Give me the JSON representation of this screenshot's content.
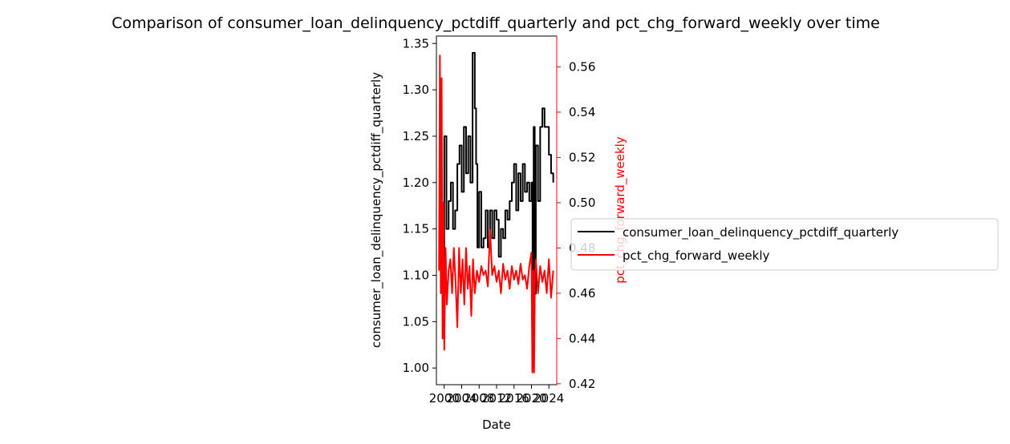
{
  "chart_data": {
    "type": "line",
    "title": "Comparison of consumer_loan_delinquency_pctdiff_quarterly and pct_chg_forward_weekly over time",
    "xlabel": "Date",
    "ylabel_left": "consumer_loan_delinquency_pctdiff_quarterly",
    "ylabel_right": "pct_chg_forward_weekly",
    "xlim": [
      1998.2,
      2025.8
    ],
    "ylim_left": [
      0.982,
      1.358
    ],
    "ylim_right": [
      0.4196,
      0.5736
    ],
    "x_ticks": [
      2000,
      2004,
      2008,
      2012,
      2016,
      2020,
      2024
    ],
    "x_tick_labels": [
      "2000",
      "2004",
      "2008",
      "2012",
      "2016",
      "2020",
      "2024"
    ],
    "y_ticks_left": [
      1.0,
      1.05,
      1.1,
      1.15,
      1.2,
      1.25,
      1.3,
      1.35
    ],
    "y_tick_labels_left": [
      "1.00",
      "1.05",
      "1.10",
      "1.15",
      "1.20",
      "1.25",
      "1.30",
      "1.35"
    ],
    "y_ticks_right": [
      0.42,
      0.44,
      0.46,
      0.48,
      0.5,
      0.52,
      0.54,
      0.56
    ],
    "y_tick_labels_right": [
      "0.42",
      "0.44",
      "0.46",
      "0.48",
      "0.50",
      "0.52",
      "0.54",
      "0.56"
    ],
    "grid": false,
    "legend_position": "right-outside",
    "series": [
      {
        "name": "consumer_loan_delinquency_pctdiff_quarterly",
        "axis": "left",
        "color": "#000000",
        "step": true,
        "x": [
          1999.0,
          1999.5,
          2000.0,
          2000.5,
          2001.0,
          2001.5,
          2002.0,
          2002.5,
          2003.0,
          2003.5,
          2004.0,
          2004.5,
          2005.0,
          2005.5,
          2006.0,
          2006.5,
          2007.0,
          2007.3,
          2007.6,
          2008.0,
          2008.5,
          2009.0,
          2009.5,
          2010.0,
          2010.5,
          2011.0,
          2011.5,
          2012.0,
          2012.5,
          2013.0,
          2013.5,
          2014.0,
          2014.5,
          2015.0,
          2015.5,
          2016.0,
          2016.5,
          2017.0,
          2017.5,
          2018.0,
          2018.5,
          2019.0,
          2019.5,
          2020.0,
          2020.25,
          2020.5,
          2020.75,
          2021.0,
          2021.5,
          2022.0,
          2022.5,
          2023.0,
          2023.5,
          2024.0,
          2024.5,
          2025.0
        ],
        "y": [
          1.16,
          1.11,
          1.25,
          1.15,
          1.18,
          1.2,
          1.15,
          1.17,
          1.22,
          1.24,
          1.19,
          1.26,
          1.21,
          1.25,
          1.2,
          1.34,
          1.28,
          1.22,
          1.13,
          1.19,
          1.13,
          1.14,
          1.17,
          1.13,
          1.17,
          1.14,
          1.17,
          1.16,
          1.12,
          1.15,
          1.14,
          1.17,
          1.16,
          1.18,
          1.2,
          1.22,
          1.17,
          1.21,
          1.18,
          1.22,
          1.19,
          1.2,
          1.18,
          1.2,
          1.0,
          1.26,
          1.08,
          1.24,
          1.18,
          1.26,
          1.28,
          1.26,
          1.26,
          1.23,
          1.21,
          1.2
        ]
      },
      {
        "name": "pct_chg_forward_weekly",
        "axis": "right",
        "color": "#ff0000",
        "step": false,
        "x": [
          1998.8,
          1999.0,
          1999.2,
          1999.4,
          1999.6,
          1999.8,
          2000.0,
          2000.3,
          2000.6,
          2001.0,
          2001.4,
          2001.8,
          2002.2,
          2002.6,
          2003.0,
          2003.4,
          2003.8,
          2004.2,
          2004.6,
          2005.0,
          2005.4,
          2005.8,
          2006.2,
          2006.6,
          2007.0,
          2007.5,
          2008.0,
          2008.5,
          2009.0,
          2009.5,
          2010.0,
          2010.5,
          2011.0,
          2011.5,
          2012.0,
          2012.5,
          2013.0,
          2013.5,
          2014.0,
          2014.5,
          2015.0,
          2015.5,
          2016.0,
          2016.5,
          2017.0,
          2017.5,
          2018.0,
          2018.5,
          2019.0,
          2019.5,
          2020.0,
          2020.2,
          2020.4,
          2020.6,
          2020.8,
          2021.0,
          2021.5,
          2022.0,
          2022.5,
          2023.0,
          2023.5,
          2024.0,
          2024.5,
          2025.0
        ],
        "y": [
          0.47,
          0.565,
          0.46,
          0.555,
          0.44,
          0.5,
          0.435,
          0.48,
          0.455,
          0.47,
          0.475,
          0.46,
          0.48,
          0.465,
          0.445,
          0.48,
          0.46,
          0.475,
          0.455,
          0.48,
          0.462,
          0.472,
          0.45,
          0.475,
          0.46,
          0.47,
          0.465,
          0.472,
          0.468,
          0.47,
          0.463,
          0.488,
          0.468,
          0.472,
          0.465,
          0.47,
          0.46,
          0.473,
          0.466,
          0.47,
          0.462,
          0.472,
          0.466,
          0.47,
          0.464,
          0.473,
          0.466,
          0.468,
          0.462,
          0.472,
          0.478,
          0.425,
          0.47,
          0.425,
          0.468,
          0.475,
          0.46,
          0.472,
          0.465,
          0.47,
          0.46,
          0.475,
          0.458,
          0.47
        ]
      }
    ]
  }
}
